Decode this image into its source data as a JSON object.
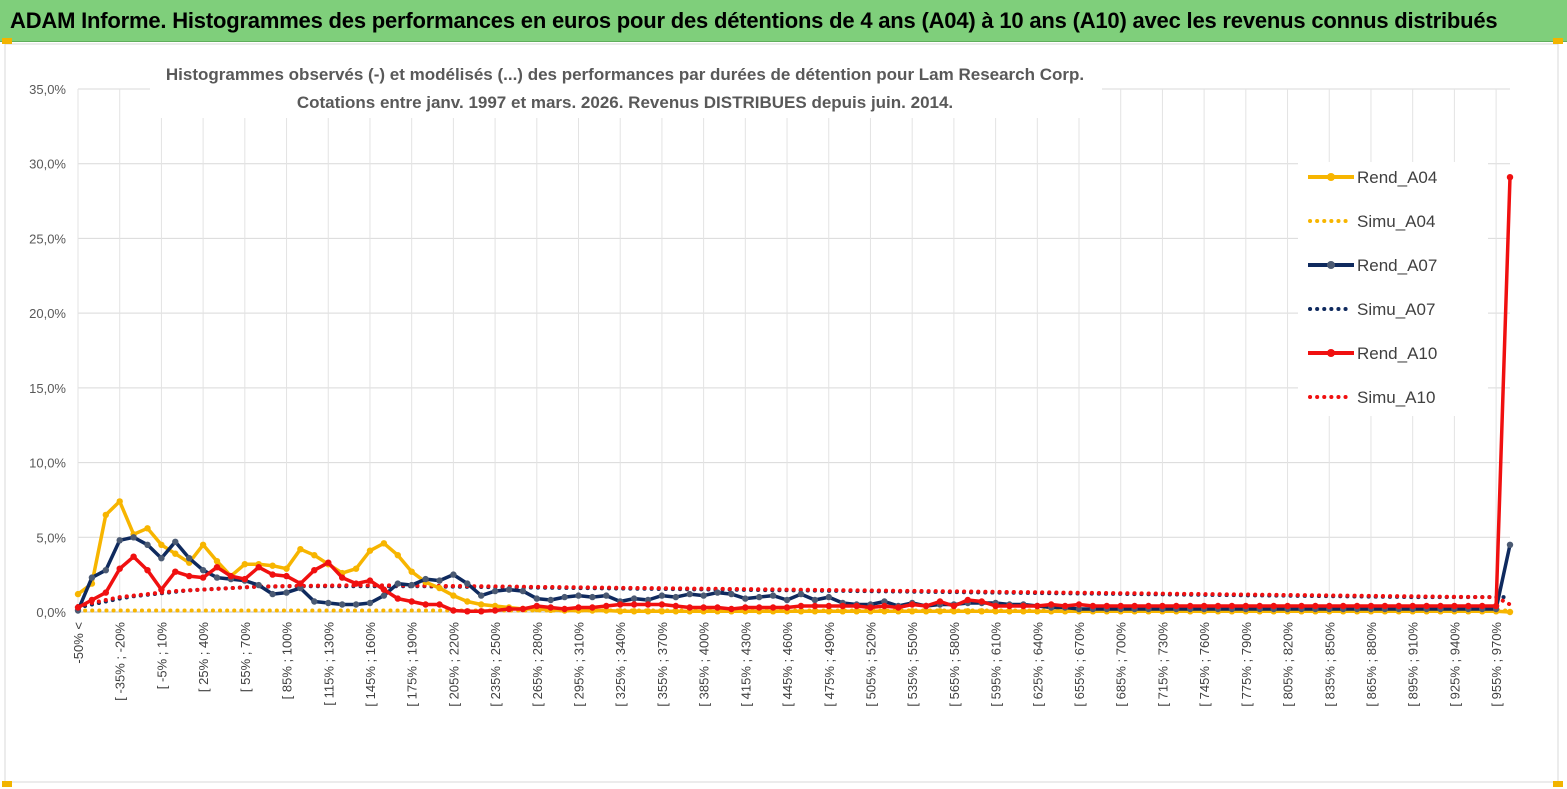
{
  "banner": {
    "title": "ADAM Informe. Histogrammes des performances en euros pour des détentions de 4 ans (A04) à 10 ans (A10) avec les revenus connus distribués"
  },
  "chart_data": {
    "type": "line",
    "title_line1": "Histogrammes observés (-) et modélisés (...) des performances par durées de détention pour Lam Research Corp.",
    "title_line2": "Cotations entre janv. 1997 et mars. 2026. Revenus DISTRIBUES depuis juin. 2014.",
    "ylim": [
      0,
      35
    ],
    "yticks": [
      "0,0%",
      "5,0%",
      "10,0%",
      "15,0%",
      "20,0%",
      "25,0%",
      "30,0%",
      "35,0%"
    ],
    "ytick_values": [
      0,
      5,
      10,
      15,
      20,
      25,
      30,
      35
    ],
    "category_count": 104,
    "xtick_labels": [
      "-50% <",
      "[ -35% ; -20%",
      "[ -5% ; 10%",
      "[ 25% ; 40%",
      "[ 55% ; 70%",
      "[ 85% ; 100%",
      "[ 115% ; 130%",
      "[ 145% ; 160%",
      "[ 175% ; 190%",
      "[ 205% ; 220%",
      "[ 235% ; 250%",
      "[ 265% ; 280%",
      "[ 295% ; 310%",
      "[ 325% ; 340%",
      "[ 355% ; 370%",
      "[ 385% ; 400%",
      "[ 415% ; 430%",
      "[ 445% ; 460%",
      "[ 475% ; 490%",
      "[ 505% ; 520%",
      "[ 535% ; 550%",
      "[ 565% ; 580%",
      "[ 595% ; 610%",
      "[ 625% ; 640%",
      "[ 655% ; 670%",
      "[ 685% ; 700%",
      "[ 715% ; 730%",
      "[ 745% ; 760%",
      "[ 775% ; 790%",
      "[ 805% ; 820%",
      "[ 835% ; 850%",
      "[ 865% ; 880%",
      "[ 895% ; 910%",
      "[ 925% ; 940%",
      "[ 955% ; 970%"
    ],
    "xtick_indices": [
      0,
      3,
      6,
      9,
      12,
      15,
      18,
      21,
      24,
      27,
      30,
      33,
      36,
      39,
      42,
      45,
      48,
      51,
      54,
      57,
      60,
      63,
      66,
      69,
      72,
      75,
      78,
      81,
      84,
      87,
      90,
      93,
      96,
      99,
      102
    ],
    "series": [
      {
        "name": "Rend_A04",
        "style": "solid",
        "color": "#f7b500",
        "values": [
          1.2,
          1.9,
          6.5,
          7.4,
          5.2,
          5.6,
          4.5,
          3.9,
          3.3,
          4.5,
          3.4,
          2.4,
          3.2,
          3.2,
          3.1,
          2.9,
          4.2,
          3.8,
          3.2,
          2.6,
          2.9,
          4.1,
          4.6,
          3.8,
          2.7,
          2.0,
          1.6,
          1.1,
          0.7,
          0.5,
          0.4,
          0.3,
          0.2,
          0.2,
          0.15,
          0.1,
          0.1,
          0.1,
          0.1,
          0.05,
          0.05,
          0.05,
          0.05,
          0.05,
          0.05,
          0.05,
          0.05,
          0.05,
          0.05,
          0.05,
          0.05,
          0.05,
          0.05,
          0.05,
          0.05,
          0.05,
          0.05,
          0.05,
          0.05,
          0.05,
          0.05,
          0.05,
          0.05,
          0.05,
          0.05,
          0.05,
          0.05,
          0.05,
          0.05,
          0.05,
          0.05,
          0.05,
          0.05,
          0.05,
          0.05,
          0.05,
          0.05,
          0.05,
          0.05,
          0.05,
          0.05,
          0.05,
          0.05,
          0.05,
          0.05,
          0.05,
          0.05,
          0.05,
          0.05,
          0.05,
          0.05,
          0.05,
          0.05,
          0.05,
          0.05,
          0.05,
          0.05,
          0.05,
          0.05,
          0.05,
          0.05,
          0.05,
          0.05,
          0.0
        ]
      },
      {
        "name": "Simu_A04",
        "style": "dotted",
        "color": "#f7b500",
        "values": [
          0.1,
          0.1,
          0.1,
          0.1,
          0.1,
          0.1,
          0.1,
          0.1,
          0.1,
          0.1,
          0.1,
          0.1,
          0.1,
          0.1,
          0.1,
          0.1,
          0.1,
          0.1,
          0.1,
          0.1,
          0.1,
          0.1,
          0.1,
          0.1,
          0.1,
          0.1,
          0.1,
          0.1,
          0.1,
          0.1,
          0.1,
          0.1,
          0.1,
          0.1,
          0.1,
          0.1,
          0.1,
          0.1,
          0.1,
          0.1,
          0.1,
          0.1,
          0.1,
          0.1,
          0.1,
          0.1,
          0.1,
          0.1,
          0.1,
          0.1,
          0.1,
          0.1,
          0.1,
          0.1,
          0.1,
          0.1,
          0.1,
          0.1,
          0.1,
          0.1,
          0.1,
          0.1,
          0.1,
          0.1,
          0.1,
          0.1,
          0.1,
          0.1,
          0.1,
          0.1,
          0.1,
          0.1,
          0.1,
          0.1,
          0.1,
          0.1,
          0.1,
          0.1,
          0.1,
          0.1,
          0.1,
          0.1,
          0.1,
          0.1,
          0.1,
          0.1,
          0.1,
          0.1,
          0.1,
          0.1,
          0.1,
          0.1,
          0.1,
          0.1,
          0.1,
          0.1,
          0.1,
          0.1,
          0.1,
          0.1,
          0.1,
          0.1,
          0.1,
          0.1
        ]
      },
      {
        "name": "Rend_A07",
        "style": "solid",
        "color": "#0f2a5e",
        "values": [
          0.1,
          2.3,
          2.8,
          4.8,
          5.0,
          4.5,
          3.6,
          4.7,
          3.6,
          2.8,
          2.3,
          2.2,
          2.1,
          1.8,
          1.2,
          1.3,
          1.6,
          0.7,
          0.6,
          0.5,
          0.5,
          0.6,
          1.1,
          1.9,
          1.8,
          2.2,
          2.1,
          2.5,
          1.9,
          1.1,
          1.4,
          1.5,
          1.4,
          0.9,
          0.8,
          1.0,
          1.1,
          1.0,
          1.1,
          0.7,
          0.9,
          0.8,
          1.1,
          1.0,
          1.2,
          1.1,
          1.3,
          1.2,
          0.9,
          1.0,
          1.1,
          0.8,
          1.2,
          0.8,
          1.0,
          0.6,
          0.5,
          0.5,
          0.7,
          0.4,
          0.6,
          0.4,
          0.5,
          0.5,
          0.6,
          0.6,
          0.6,
          0.5,
          0.5,
          0.4,
          0.3,
          0.3,
          0.2,
          0.2,
          0.2,
          0.2,
          0.2,
          0.2,
          0.2,
          0.2,
          0.2,
          0.2,
          0.2,
          0.2,
          0.2,
          0.2,
          0.2,
          0.2,
          0.2,
          0.2,
          0.2,
          0.2,
          0.2,
          0.2,
          0.2,
          0.2,
          0.2,
          0.2,
          0.2,
          0.2,
          0.2,
          0.2,
          0.2,
          4.5
        ]
      },
      {
        "name": "Simu_A07",
        "style": "dotted",
        "color": "#0f2a5e",
        "values": [
          0.3,
          0.5,
          0.7,
          0.9,
          1.05,
          1.15,
          1.25,
          1.35,
          1.45,
          1.5,
          1.55,
          1.6,
          1.65,
          1.7,
          1.7,
          1.72,
          1.72,
          1.72,
          1.72,
          1.72,
          1.72,
          1.72,
          1.72,
          1.72,
          1.72,
          1.72,
          1.7,
          1.7,
          1.68,
          1.67,
          1.66,
          1.65,
          1.64,
          1.63,
          1.62,
          1.61,
          1.6,
          1.59,
          1.58,
          1.57,
          1.56,
          1.55,
          1.54,
          1.53,
          1.52,
          1.51,
          1.5,
          1.49,
          1.48,
          1.47,
          1.46,
          1.45,
          1.44,
          1.43,
          1.42,
          1.41,
          1.4,
          1.39,
          1.38,
          1.37,
          1.36,
          1.35,
          1.34,
          1.33,
          1.32,
          1.31,
          1.3,
          1.29,
          1.28,
          1.27,
          1.26,
          1.25,
          1.24,
          1.23,
          1.22,
          1.21,
          1.2,
          1.19,
          1.18,
          1.17,
          1.16,
          1.15,
          1.14,
          1.13,
          1.12,
          1.11,
          1.1,
          1.09,
          1.08,
          1.07,
          1.06,
          1.05,
          1.04,
          1.03,
          1.02,
          1.01,
          1.0,
          1.0,
          1.0,
          1.0,
          1.0,
          1.0,
          1.0,
          1.0
        ]
      },
      {
        "name": "Rend_A10",
        "style": "solid",
        "color": "#f01010",
        "values": [
          0.3,
          0.8,
          1.3,
          2.9,
          3.7,
          2.8,
          1.5,
          2.7,
          2.4,
          2.3,
          3.0,
          2.4,
          2.2,
          3.0,
          2.5,
          2.4,
          1.9,
          2.8,
          3.3,
          2.3,
          1.9,
          2.1,
          1.5,
          0.9,
          0.7,
          0.5,
          0.5,
          0.1,
          0.05,
          0.05,
          0.1,
          0.2,
          0.2,
          0.4,
          0.3,
          0.2,
          0.3,
          0.3,
          0.4,
          0.5,
          0.5,
          0.5,
          0.5,
          0.4,
          0.3,
          0.3,
          0.3,
          0.2,
          0.3,
          0.3,
          0.3,
          0.3,
          0.4,
          0.4,
          0.4,
          0.4,
          0.4,
          0.3,
          0.4,
          0.3,
          0.5,
          0.4,
          0.7,
          0.4,
          0.8,
          0.7,
          0.4,
          0.4,
          0.4,
          0.4,
          0.5,
          0.4,
          0.5,
          0.4,
          0.4,
          0.4,
          0.4,
          0.4,
          0.4,
          0.4,
          0.4,
          0.4,
          0.4,
          0.4,
          0.4,
          0.4,
          0.4,
          0.4,
          0.4,
          0.4,
          0.4,
          0.4,
          0.4,
          0.4,
          0.4,
          0.4,
          0.4,
          0.4,
          0.4,
          0.4,
          0.4,
          0.4,
          0.4,
          29.1
        ]
      },
      {
        "name": "Simu_A10",
        "style": "dotted",
        "color": "#f01010",
        "values": [
          0.4,
          0.6,
          0.8,
          1.0,
          1.1,
          1.2,
          1.3,
          1.4,
          1.45,
          1.5,
          1.55,
          1.6,
          1.65,
          1.7,
          1.72,
          1.74,
          1.75,
          1.76,
          1.77,
          1.78,
          1.78,
          1.78,
          1.78,
          1.78,
          1.77,
          1.76,
          1.75,
          1.74,
          1.73,
          1.72,
          1.71,
          1.7,
          1.69,
          1.68,
          1.67,
          1.66,
          1.65,
          1.64,
          1.63,
          1.62,
          1.61,
          1.6,
          1.59,
          1.58,
          1.57,
          1.56,
          1.55,
          1.54,
          1.53,
          1.52,
          1.51,
          1.5,
          1.49,
          1.48,
          1.47,
          1.46,
          1.45,
          1.44,
          1.43,
          1.42,
          1.41,
          1.4,
          1.39,
          1.38,
          1.37,
          1.36,
          1.35,
          1.34,
          1.33,
          1.32,
          1.31,
          1.3,
          1.29,
          1.28,
          1.27,
          1.26,
          1.25,
          1.24,
          1.23,
          1.22,
          1.21,
          1.2,
          1.19,
          1.18,
          1.17,
          1.16,
          1.15,
          1.14,
          1.13,
          1.12,
          1.11,
          1.1,
          1.09,
          1.08,
          1.07,
          1.06,
          1.05,
          1.04,
          1.03,
          1.02,
          1.01,
          1.0,
          1.0,
          0.5
        ]
      }
    ],
    "legend_position": "right"
  }
}
